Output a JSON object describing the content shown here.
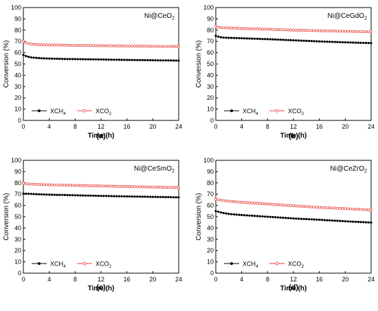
{
  "chart_data": [
    {
      "type": "line",
      "panel_label": "(a)",
      "annotation": {
        "base": "Ni@CeO",
        "sub": "2"
      },
      "xlabel": "Time (h)",
      "ylabel": "Conversion (%)",
      "xlim": [
        0,
        24
      ],
      "ylim": [
        0,
        100
      ],
      "x_ticks": [
        "0",
        "4",
        "8",
        "12",
        "16",
        "20",
        "24"
      ],
      "y_ticks": [
        "0",
        "10",
        "20",
        "30",
        "40",
        "50",
        "60",
        "70",
        "80",
        "90",
        "100"
      ],
      "legend_placement": "bottom-left",
      "series": [
        {
          "name": "XCH4",
          "name_base": "XCH",
          "name_sub": "4",
          "color": "#000000",
          "marker": "filled-circle",
          "x": [
            0,
            0.5,
            1,
            2,
            3,
            4,
            6,
            8,
            12,
            16,
            20,
            24
          ],
          "y": [
            58,
            56.8,
            56,
            55.4,
            55,
            54.8,
            54.5,
            54.3,
            54,
            53.6,
            53.3,
            53
          ]
        },
        {
          "name": "XCO2",
          "name_base": "XCO",
          "name_sub": "2",
          "color": "#e8413c",
          "marker": "open-circle",
          "x": [
            0,
            0.5,
            1,
            2,
            3,
            4,
            6,
            8,
            12,
            16,
            20,
            24
          ],
          "y": [
            70,
            68.5,
            67.8,
            67.3,
            67,
            66.9,
            66.7,
            66.5,
            66.2,
            66,
            65.7,
            65.5
          ]
        }
      ]
    },
    {
      "type": "line",
      "panel_label": "(b)",
      "annotation": {
        "base": "Ni@CeGdO",
        "sub": "2"
      },
      "xlabel": "Time (h)",
      "ylabel": "Conversion (%)",
      "xlim": [
        0,
        24
      ],
      "ylim": [
        0,
        100
      ],
      "x_ticks": [
        "0",
        "4",
        "8",
        "12",
        "16",
        "20",
        "24"
      ],
      "y_ticks": [
        "0",
        "10",
        "20",
        "30",
        "40",
        "50",
        "60",
        "70",
        "80",
        "90",
        "100"
      ],
      "legend_placement": "bottom-left",
      "series": [
        {
          "name": "XCH4",
          "name_base": "XCH",
          "name_sub": "4",
          "color": "#000000",
          "marker": "filled-circle",
          "x": [
            0,
            0.5,
            1,
            2,
            4,
            8,
            12,
            16,
            20,
            24
          ],
          "y": [
            75,
            74,
            73.5,
            73.2,
            72.8,
            72,
            71,
            70,
            69.2,
            68.5
          ]
        },
        {
          "name": "XCO2",
          "name_base": "XCO",
          "name_sub": "2",
          "color": "#e8413c",
          "marker": "open-circle",
          "x": [
            0,
            0.5,
            1,
            2,
            4,
            8,
            12,
            16,
            20,
            24
          ],
          "y": [
            83,
            82.5,
            82.2,
            82,
            81.5,
            80.8,
            80,
            79.5,
            79,
            78.5
          ]
        }
      ]
    },
    {
      "type": "line",
      "panel_label": "(c)",
      "annotation": {
        "base": "Ni@CeSmO",
        "sub": "2"
      },
      "xlabel": "Time (h)",
      "ylabel": "Conversion (%)",
      "xlim": [
        0,
        24
      ],
      "ylim": [
        0,
        100
      ],
      "x_ticks": [
        "0",
        "4",
        "8",
        "12",
        "16",
        "20",
        "24"
      ],
      "y_ticks": [
        "0",
        "10",
        "20",
        "30",
        "40",
        "50",
        "60",
        "70",
        "80",
        "90",
        "100"
      ],
      "legend_placement": "bottom-left",
      "series": [
        {
          "name": "XCH4",
          "name_base": "XCH",
          "name_sub": "4",
          "color": "#000000",
          "marker": "filled-circle",
          "x": [
            0,
            1,
            2,
            4,
            8,
            12,
            16,
            20,
            24
          ],
          "y": [
            70.5,
            70.3,
            70,
            69.6,
            69,
            68.5,
            68,
            67.6,
            67.2
          ]
        },
        {
          "name": "XCO2",
          "name_base": "XCO",
          "name_sub": "2",
          "color": "#e8413c",
          "marker": "open-circle",
          "x": [
            0,
            1,
            2,
            4,
            8,
            12,
            16,
            20,
            24
          ],
          "y": [
            79.5,
            79,
            78.7,
            78.3,
            77.8,
            77.3,
            76.8,
            76.3,
            75.8
          ]
        }
      ]
    },
    {
      "type": "line",
      "panel_label": "(d)",
      "annotation": {
        "base": "Ni@CeZrO",
        "sub": "2"
      },
      "xlabel": "Time (h)",
      "ylabel": "Conversion (%)",
      "xlim": [
        0,
        24
      ],
      "ylim": [
        0,
        100
      ],
      "x_ticks": [
        "0",
        "4",
        "8",
        "12",
        "16",
        "20",
        "24"
      ],
      "y_ticks": [
        "0",
        "10",
        "20",
        "30",
        "40",
        "50",
        "60",
        "70",
        "80",
        "90",
        "100"
      ],
      "legend_placement": "bottom-left",
      "series": [
        {
          "name": "XCH4",
          "name_base": "XCH",
          "name_sub": "4",
          "color": "#000000",
          "marker": "filled-circle",
          "x": [
            0,
            1,
            2,
            4,
            8,
            12,
            16,
            20,
            24
          ],
          "y": [
            55,
            53.5,
            52.5,
            51.5,
            50,
            48.5,
            47.3,
            46,
            44.8
          ]
        },
        {
          "name": "XCO2",
          "name_base": "XCO",
          "name_sub": "2",
          "color": "#e8413c",
          "marker": "open-circle",
          "x": [
            0,
            1,
            2,
            4,
            8,
            12,
            16,
            20,
            24
          ],
          "y": [
            65.5,
            64.5,
            63.8,
            62.8,
            61.3,
            59.7,
            58.3,
            57.2,
            56
          ]
        }
      ]
    }
  ]
}
